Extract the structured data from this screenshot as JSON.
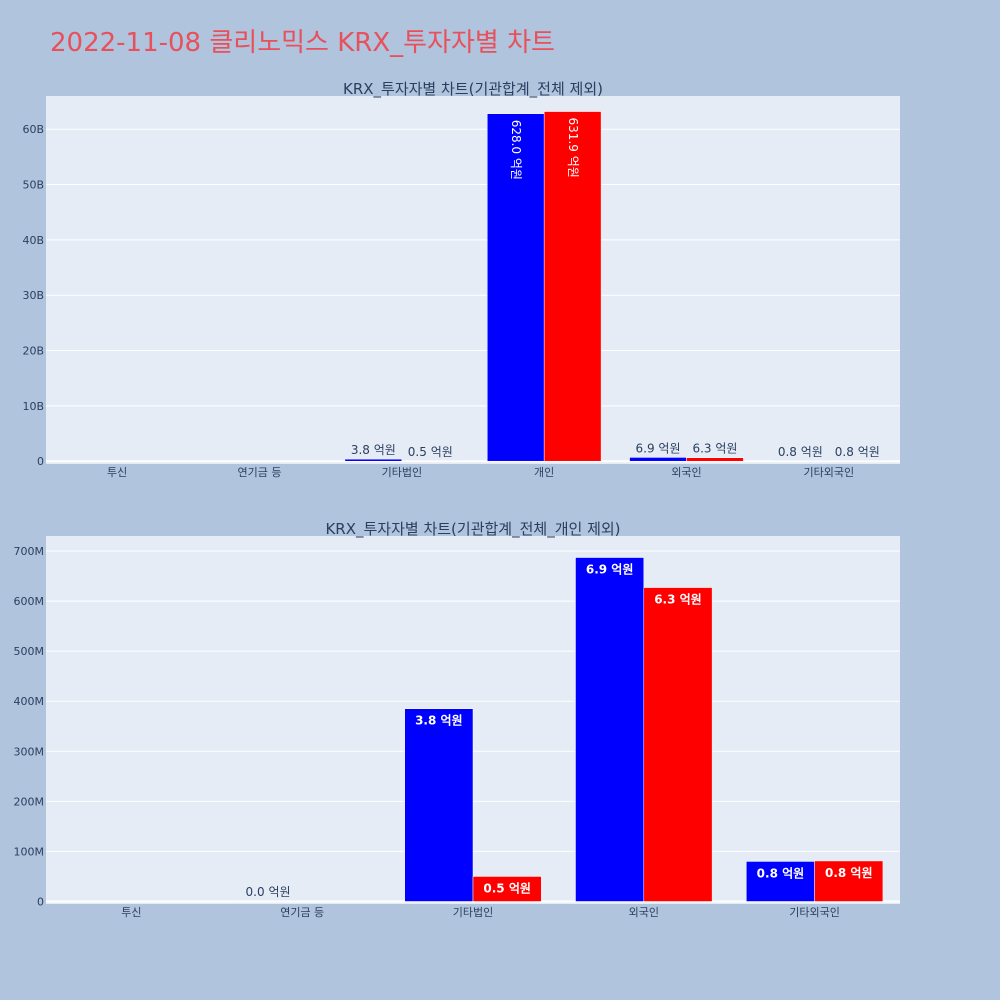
{
  "page": {
    "title": "2022-11-08 클리노믹스 KRX_투자자별 차트"
  },
  "colors": {
    "page_bg": "#b0c4de",
    "plot_bg": "#e5ecf6",
    "title": "#e8505b",
    "text": "#2a3f5f",
    "series_a": "#0000ff",
    "series_b": "#ff0000"
  },
  "chart_data": [
    {
      "type": "bar",
      "title": "KRX_투자자별 차트(기관합계_전체 제외)",
      "categories": [
        "투신",
        "연기금 등",
        "기타법인",
        "개인",
        "외국인",
        "기타외국인"
      ],
      "series": [
        {
          "values": [
            0,
            0,
            380000000,
            62800000000,
            690000000,
            80000000
          ],
          "labels": [
            "",
            "",
            "3.8 억원",
            "628.0 억원",
            "6.9 억원",
            "0.8 억원"
          ]
        },
        {
          "values": [
            0,
            0,
            50000000,
            63190000000,
            630000000,
            80000000
          ],
          "labels": [
            "",
            "",
            "0.5 억원",
            "631.9 억원",
            "6.3 억원",
            "0.8 억원"
          ]
        }
      ],
      "ylim": [
        -500000000,
        66000000000
      ],
      "yticks": [
        0,
        10000000000,
        20000000000,
        30000000000,
        40000000000,
        50000000000,
        60000000000
      ],
      "ytick_labels": [
        "0",
        "10B",
        "20B",
        "30B",
        "40B",
        "50B",
        "60B"
      ],
      "label_position": "outside, rotated inside for large bars",
      "grid": true,
      "legend": "none"
    },
    {
      "type": "bar",
      "title": "KRX_투자자별 차트(기관합계_전체_개인 제외)",
      "categories": [
        "투신",
        "연기금 등",
        "기타법인",
        "외국인",
        "기타외국인"
      ],
      "series": [
        {
          "values": [
            0,
            1000000,
            385000000,
            687000000,
            80000000
          ],
          "labels": [
            "",
            "0.0 억원",
            "3.8 억원",
            "6.9 억원",
            "0.8 억원"
          ]
        },
        {
          "values": [
            0,
            0,
            50000000,
            627000000,
            81000000
          ],
          "labels": [
            "",
            "",
            "0.5 억원",
            "6.3 억원",
            "0.8 억원"
          ]
        }
      ],
      "ylim": [
        -5000000,
        730000000
      ],
      "yticks": [
        0,
        100000000,
        200000000,
        300000000,
        400000000,
        500000000,
        600000000,
        700000000
      ],
      "ytick_labels": [
        "0",
        "100M",
        "200M",
        "300M",
        "400M",
        "500M",
        "600M",
        "700M"
      ],
      "label_position": "inside",
      "grid": true,
      "legend": "none"
    }
  ]
}
